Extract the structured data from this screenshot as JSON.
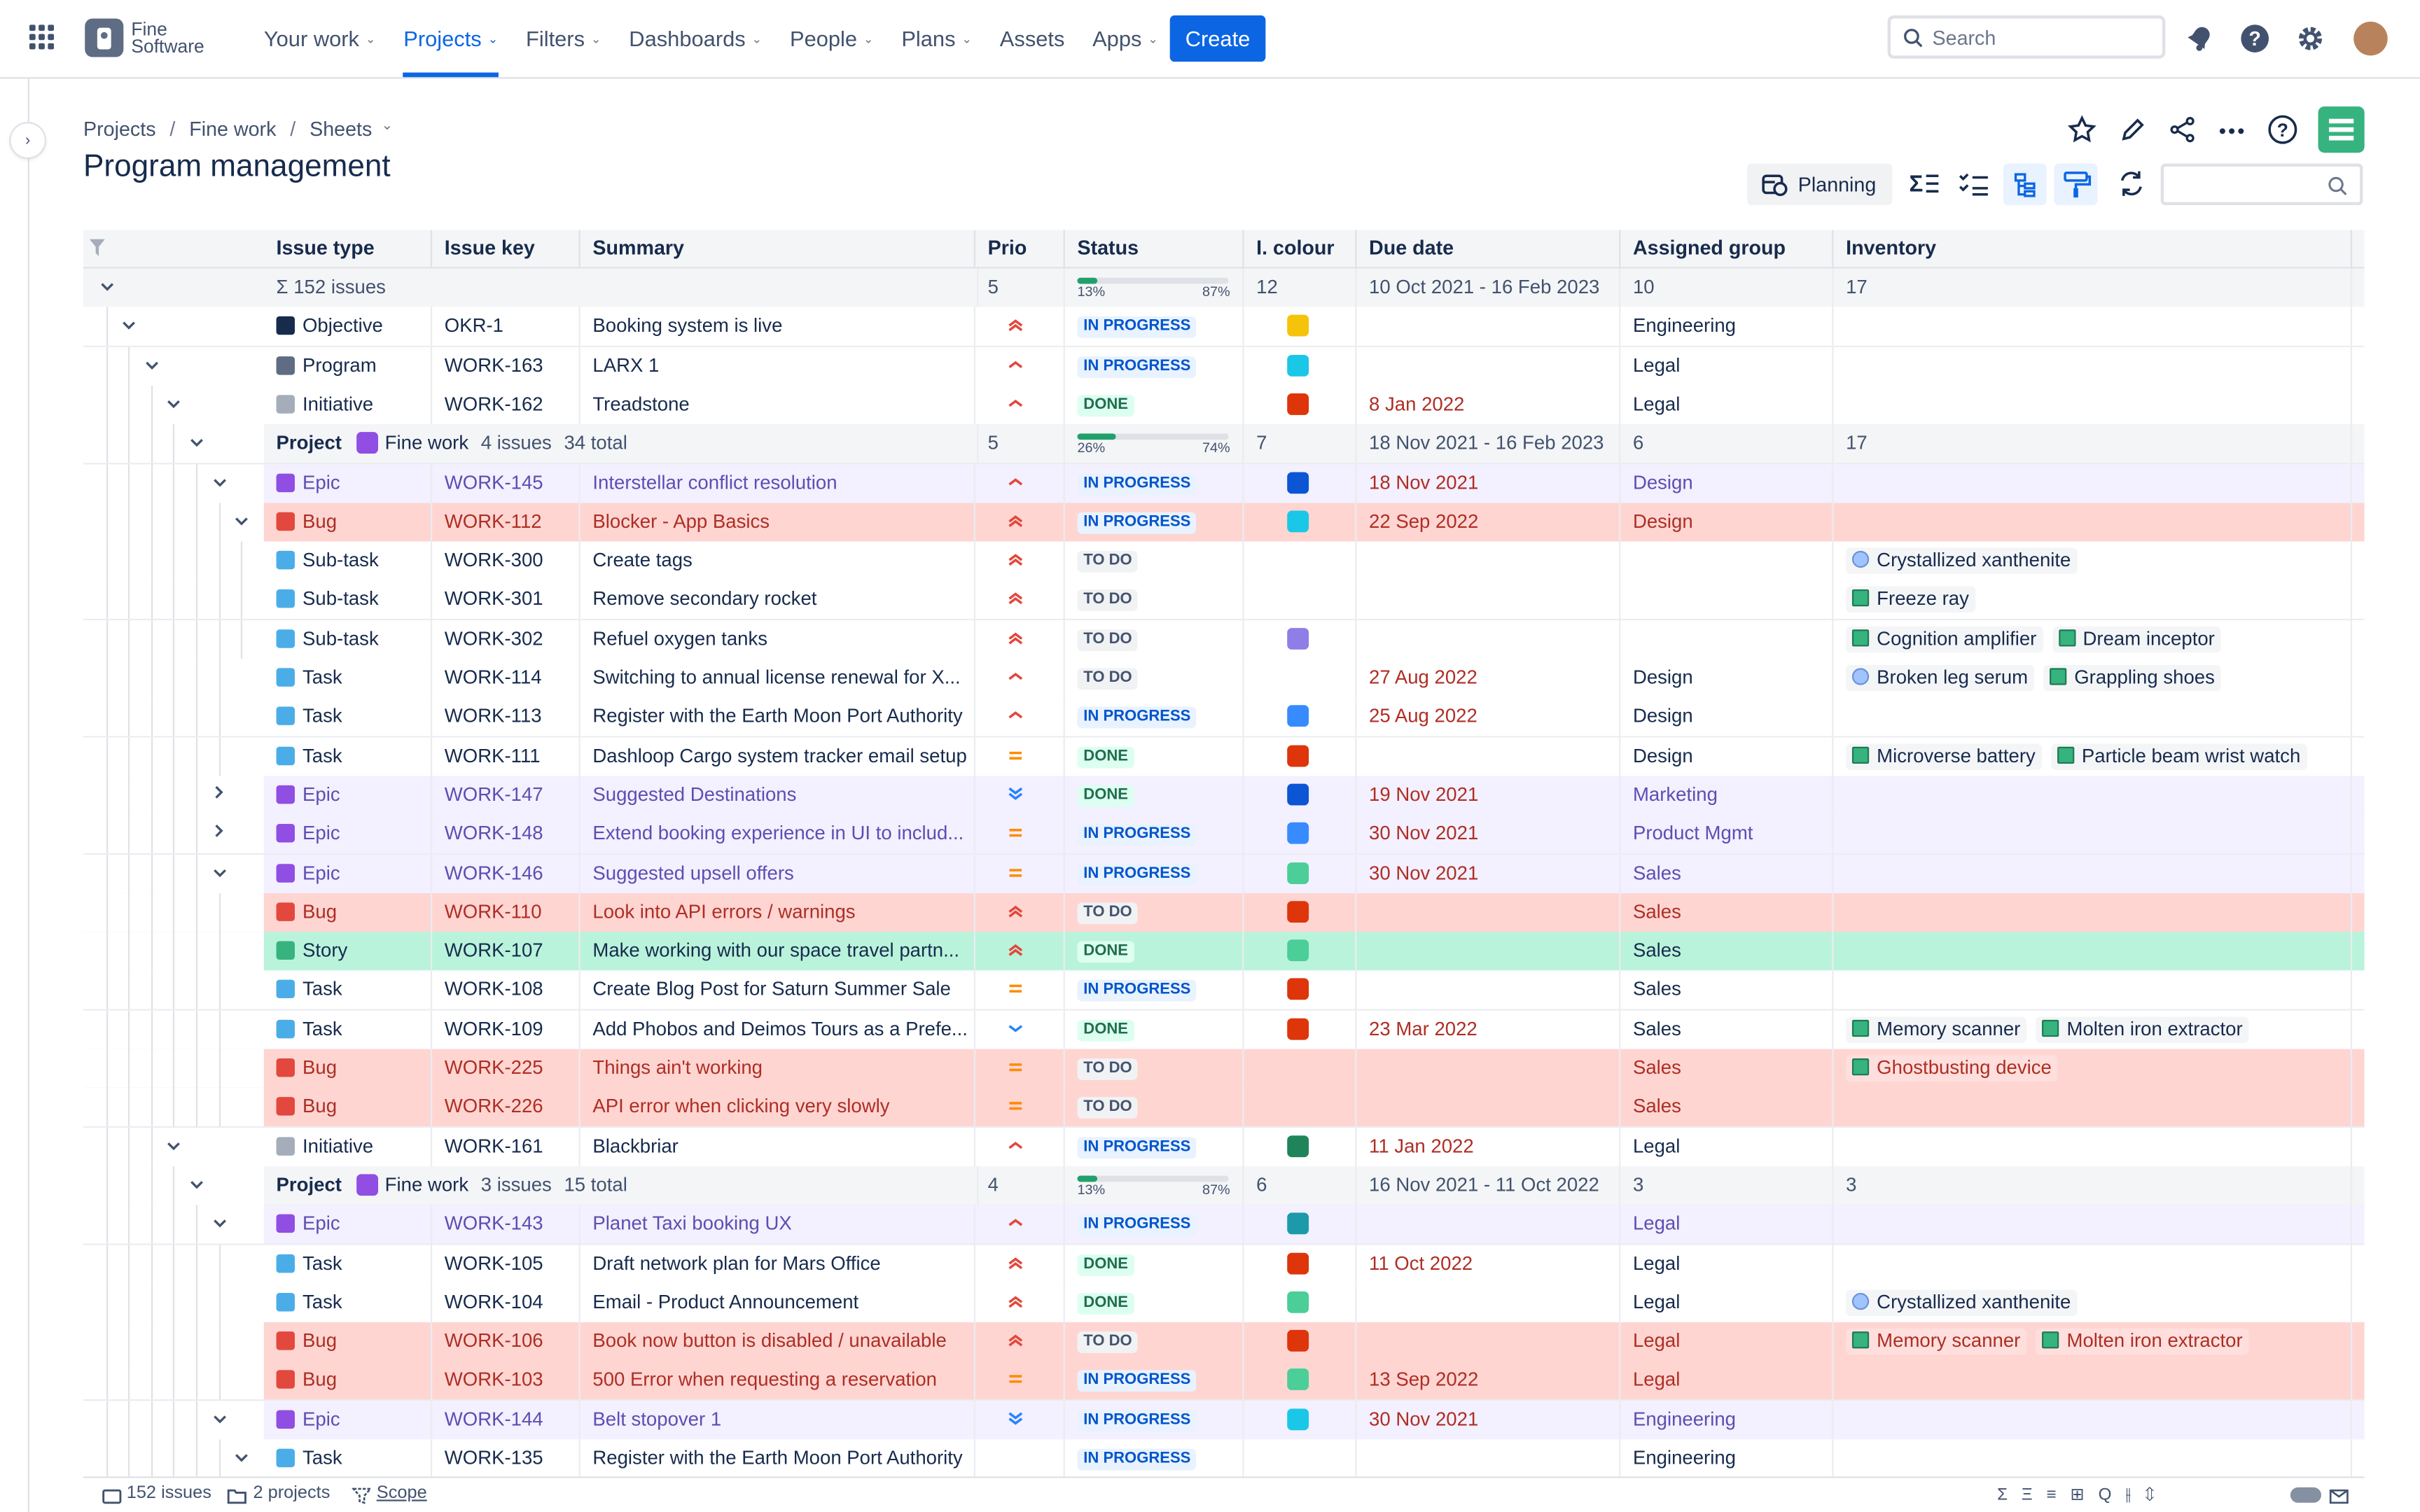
{
  "nav": {
    "logo_line1": "Fine",
    "logo_line2": "Software",
    "items": [
      {
        "label": "Your work",
        "chev": "⌄"
      },
      {
        "label": "Projects",
        "chev": "⌄"
      },
      {
        "label": "Filters",
        "chev": "⌄"
      },
      {
        "label": "Dashboards",
        "chev": "⌄"
      },
      {
        "label": "People",
        "chev": "⌄"
      },
      {
        "label": "Plans",
        "chev": "⌄"
      },
      {
        "label": "Assets",
        "chev": ""
      },
      {
        "label": "Apps",
        "chev": "⌄"
      }
    ],
    "create": "Create",
    "search_placeholder": "Search"
  },
  "breadcrumb": {
    "items": [
      "Projects",
      "Fine work",
      "Sheets"
    ],
    "sep": "/"
  },
  "title": "Program management",
  "toolbar": {
    "planning": "Planning"
  },
  "columns": [
    "Issue type",
    "Issue key",
    "Summary",
    "Prio",
    "Status",
    "I. colour",
    "Due date",
    "Assigned group",
    "Inventory"
  ],
  "rows": [
    {
      "kind": "sum",
      "depth": 0,
      "chev": "v",
      "type": "Σ  152 issues",
      "prio": "5",
      "pl": "13%",
      "pr": "87%",
      "pct": 0.13,
      "colour_text": "12",
      "due": "10 Oct 2021 - 16 Feb 2023",
      "group": "10",
      "inv_text": "17"
    },
    {
      "depth": 1,
      "chev": "v",
      "type": "Objective",
      "tcol": "#172b4d",
      "key": "OKR-1",
      "summary": "Booking system is live",
      "prio": "high",
      "status": "IN PROGRESS",
      "colour": "#f5c30a",
      "due": "",
      "group": "Engineering",
      "inv": []
    },
    {
      "depth": 2,
      "chev": "v",
      "type": "Program",
      "tcol": "#5e6c84",
      "key": "WORK-163",
      "summary": "LARX 1",
      "prio": "medium",
      "status": "IN PROGRESS",
      "colour": "#1bc7e6",
      "due": "",
      "group": "Legal",
      "inv": []
    },
    {
      "depth": 3,
      "chev": "v",
      "type": "Initiative",
      "tcol": "#a5adba",
      "key": "WORK-162",
      "summary": "Treadstone",
      "prio": "medium",
      "status": "DONE",
      "colour": "#de350b",
      "due": "8 Jan 2022",
      "group": "Legal",
      "inv": []
    },
    {
      "kind": "proj",
      "depth": 4,
      "chev": "v",
      "label": "Project",
      "name": "Fine work",
      "count": "4 issues",
      "total": "34 total",
      "prio": "5",
      "pl": "26%",
      "pr": "74%",
      "pct": 0.26,
      "colour_text": "7",
      "due": "18 Nov 2021 - 16 Feb 2023",
      "group": "6",
      "inv_text": "17"
    },
    {
      "depth": 5,
      "chev": "v",
      "bg": "epic",
      "type": "Epic",
      "tcol": "#904ee2",
      "key": "WORK-145",
      "summary": "Interstellar conflict resolution",
      "prio": "medium",
      "status": "IN PROGRESS",
      "colour": "#0c55d4",
      "due": "18 Nov 2021",
      "group": "Design",
      "inv": []
    },
    {
      "depth": 6,
      "chev": "v",
      "bg": "bug",
      "type": "Bug",
      "tcol": "#e2483d",
      "key": "WORK-112",
      "summary": "Blocker - App Basics",
      "prio": "high",
      "status": "IN PROGRESS",
      "colour": "#1bc7e6",
      "due": "22 Sep 2022",
      "group": "Design",
      "inv": []
    },
    {
      "depth": 7,
      "type": "Sub-task",
      "tcol": "#4bade8",
      "key": "WORK-300",
      "summary": "Create tags",
      "prio": "high",
      "status": "TO DO",
      "colour": "",
      "due": "",
      "group": "",
      "inv": [
        {
          "n": "Crystallized xanthenite",
          "c": "blue"
        }
      ]
    },
    {
      "depth": 7,
      "type": "Sub-task",
      "tcol": "#4bade8",
      "key": "WORK-301",
      "summary": "Remove secondary rocket",
      "prio": "high",
      "status": "TO DO",
      "colour": "",
      "due": "",
      "group": "",
      "inv": [
        {
          "n": "Freeze ray",
          "c": "green"
        }
      ]
    },
    {
      "depth": 7,
      "type": "Sub-task",
      "tcol": "#4bade8",
      "key": "WORK-302",
      "summary": "Refuel oxygen tanks",
      "prio": "high",
      "status": "TO DO",
      "colour": "#8f7ee7",
      "due": "",
      "group": "",
      "inv": [
        {
          "n": "Cognition amplifier",
          "c": "green"
        },
        {
          "n": "Dream inceptor",
          "c": "green"
        }
      ]
    },
    {
      "depth": 6,
      "type": "Task",
      "tcol": "#4bade8",
      "key": "WORK-114",
      "summary": "Switching to annual license renewal for X...",
      "prio": "medium",
      "status": "TO DO",
      "colour": "",
      "due": "27 Aug 2022",
      "group": "Design",
      "inv": [
        {
          "n": "Broken leg serum",
          "c": "blue"
        },
        {
          "n": "Grappling shoes",
          "c": "green"
        }
      ]
    },
    {
      "depth": 6,
      "type": "Task",
      "tcol": "#4bade8",
      "key": "WORK-113",
      "summary": "Register with the Earth Moon Port Authority",
      "prio": "medium",
      "status": "IN PROGRESS",
      "colour": "#388bff",
      "due": "25 Aug 2022",
      "group": "Design",
      "inv": []
    },
    {
      "depth": 6,
      "type": "Task",
      "tcol": "#4bade8",
      "key": "WORK-111",
      "summary": "Dashloop Cargo system tracker email setup",
      "prio": "equal",
      "status": "DONE",
      "colour": "#de350b",
      "due": "",
      "group": "Design",
      "inv": [
        {
          "n": "Microverse battery",
          "c": "green"
        },
        {
          "n": "Particle beam wrist watch",
          "c": "green"
        }
      ]
    },
    {
      "depth": 5,
      "chev": ">",
      "bg": "epic",
      "type": "Epic",
      "tcol": "#904ee2",
      "key": "WORK-147",
      "summary": "Suggested Destinations",
      "prio": "lowest",
      "status": "DONE",
      "colour": "#0c55d4",
      "due": "19 Nov 2021",
      "group": "Marketing",
      "inv": []
    },
    {
      "depth": 5,
      "chev": ">",
      "bg": "epic",
      "type": "Epic",
      "tcol": "#904ee2",
      "key": "WORK-148",
      "summary": "Extend booking experience in UI to includ...",
      "prio": "equal",
      "status": "IN PROGRESS",
      "colour": "#388bff",
      "due": "30 Nov 2021",
      "group": "Product Mgmt",
      "inv": []
    },
    {
      "depth": 5,
      "chev": "v",
      "bg": "epic",
      "type": "Epic",
      "tcol": "#904ee2",
      "key": "WORK-146",
      "summary": "Suggested upsell offers",
      "prio": "equal",
      "status": "IN PROGRESS",
      "colour": "#4bce97",
      "due": "30 Nov 2021",
      "group": "Sales",
      "inv": []
    },
    {
      "depth": 6,
      "bg": "bug",
      "type": "Bug",
      "tcol": "#e2483d",
      "key": "WORK-110",
      "summary": "Look into API errors / warnings",
      "prio": "high",
      "status": "TO DO",
      "colour": "#de350b",
      "due": "",
      "group": "Sales",
      "inv": []
    },
    {
      "depth": 6,
      "bg": "story",
      "type": "Story",
      "tcol": "#36b37e",
      "key": "WORK-107",
      "summary": "Make working with our space travel partn...",
      "prio": "high",
      "status": "DONE",
      "colour": "#4bce97",
      "due": "",
      "group": "Sales",
      "inv": []
    },
    {
      "depth": 6,
      "type": "Task",
      "tcol": "#4bade8",
      "key": "WORK-108",
      "summary": "Create Blog Post for Saturn Summer Sale",
      "prio": "equal",
      "status": "IN PROGRESS",
      "colour": "#de350b",
      "due": "",
      "group": "Sales",
      "inv": []
    },
    {
      "depth": 6,
      "type": "Task",
      "tcol": "#4bade8",
      "key": "WORK-109",
      "summary": "Add Phobos and Deimos Tours as a Prefe...",
      "prio": "low",
      "status": "DONE",
      "colour": "#de350b",
      "due": "23 Mar 2022",
      "group": "Sales",
      "inv": [
        {
          "n": "Memory scanner",
          "c": "green"
        },
        {
          "n": "Molten iron extractor",
          "c": "green"
        }
      ]
    },
    {
      "depth": 6,
      "bg": "bug",
      "type": "Bug",
      "tcol": "#e2483d",
      "key": "WORK-225",
      "summary": "Things ain't working",
      "prio": "equal",
      "status": "TO DO",
      "colour": "",
      "due": "",
      "group": "Sales",
      "inv": [
        {
          "n": "Ghostbusting device",
          "c": "green"
        }
      ]
    },
    {
      "depth": 6,
      "bg": "bug",
      "type": "Bug",
      "tcol": "#e2483d",
      "key": "WORK-226",
      "summary": "API error when clicking very slowly",
      "prio": "equal",
      "status": "TO DO",
      "colour": "",
      "due": "",
      "group": "Sales",
      "inv": []
    },
    {
      "depth": 3,
      "chev": "v",
      "type": "Initiative",
      "tcol": "#a5adba",
      "key": "WORK-161",
      "summary": "Blackbriar",
      "prio": "medium",
      "status": "IN PROGRESS",
      "colour": "#1f845a",
      "due": "11 Jan 2022",
      "group": "Legal",
      "inv": []
    },
    {
      "kind": "proj",
      "depth": 4,
      "chev": "v",
      "label": "Project",
      "name": "Fine work",
      "count": "3 issues",
      "total": "15 total",
      "prio": "4",
      "pl": "13%",
      "pr": "87%",
      "pct": 0.13,
      "colour_text": "6",
      "due": "16 Nov 2021 - 11 Oct 2022",
      "group": "3",
      "inv_text": "3"
    },
    {
      "depth": 5,
      "chev": "v",
      "bg": "epic",
      "type": "Epic",
      "tcol": "#904ee2",
      "key": "WORK-143",
      "summary": "Planet Taxi booking UX",
      "prio": "medium",
      "status": "IN PROGRESS",
      "colour": "#1d9aaa",
      "due": "",
      "group": "Legal",
      "inv": []
    },
    {
      "depth": 6,
      "type": "Task",
      "tcol": "#4bade8",
      "key": "WORK-105",
      "summary": "Draft network plan for Mars Office",
      "prio": "high",
      "status": "DONE",
      "colour": "#de350b",
      "due": "11 Oct 2022",
      "group": "Legal",
      "inv": []
    },
    {
      "depth": 6,
      "type": "Task",
      "tcol": "#4bade8",
      "key": "WORK-104",
      "summary": "Email - Product Announcement",
      "prio": "high",
      "status": "DONE",
      "colour": "#4bce97",
      "due": "",
      "group": "Legal",
      "inv": [
        {
          "n": "Crystallized xanthenite",
          "c": "blue"
        }
      ]
    },
    {
      "depth": 6,
      "bg": "bug",
      "type": "Bug",
      "tcol": "#e2483d",
      "key": "WORK-106",
      "summary": "Book now button is disabled / unavailable",
      "prio": "high",
      "status": "TO DO",
      "colour": "#de350b",
      "due": "",
      "group": "Legal",
      "inv": [
        {
          "n": "Memory scanner",
          "c": "green"
        },
        {
          "n": "Molten iron extractor",
          "c": "green"
        }
      ]
    },
    {
      "depth": 6,
      "bg": "bug",
      "type": "Bug",
      "tcol": "#e2483d",
      "key": "WORK-103",
      "summary": "500 Error when requesting a reservation",
      "prio": "equal",
      "status": "IN PROGRESS",
      "colour": "#4bce97",
      "due": "13 Sep 2022",
      "group": "Legal",
      "inv": []
    },
    {
      "depth": 5,
      "chev": "v",
      "bg": "epic",
      "type": "Epic",
      "tcol": "#904ee2",
      "key": "WORK-144",
      "summary": "Belt stopover 1",
      "prio": "lowest",
      "status": "IN PROGRESS",
      "colour": "#1bc7e6",
      "due": "30 Nov 2021",
      "group": "Engineering",
      "inv": []
    },
    {
      "depth": 6,
      "chev": "v",
      "type": "Task",
      "tcol": "#4bade8",
      "key": "WORK-135",
      "summary": "Register with the Earth Moon Port Authority",
      "prio": "",
      "status": "IN PROGRESS",
      "colour": "",
      "due": "",
      "group": "Engineering",
      "inv": []
    }
  ],
  "footer": {
    "issues": "152 issues",
    "projects": "2 projects",
    "scope": "Scope"
  }
}
